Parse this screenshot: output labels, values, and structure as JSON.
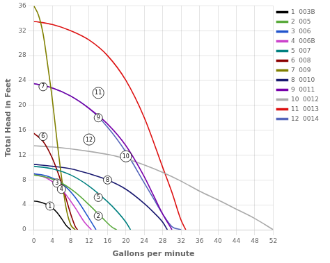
{
  "chart_data": {
    "type": "line",
    "xlabel": "Gallons per minute",
    "ylabel": "Total Head in Feet",
    "xlim": [
      0,
      52
    ],
    "ylim": [
      0,
      36
    ],
    "xticks": [
      0,
      4,
      8,
      12,
      16,
      20,
      24,
      28,
      32,
      36,
      40,
      44,
      48,
      52
    ],
    "yticks": [
      0,
      4,
      8,
      12,
      16,
      20,
      24,
      28,
      32,
      36
    ],
    "grid": true,
    "legend": "upper right",
    "series": [
      {
        "name": "1  003B",
        "color": "#000000",
        "x": [
          0,
          1,
          2,
          3,
          4,
          5,
          6,
          7,
          8
        ],
        "values": [
          4.6,
          4.5,
          4.3,
          4.0,
          3.5,
          2.8,
          1.8,
          0.7,
          0
        ]
      },
      {
        "name": "2  005",
        "color": "#5aaa3c",
        "x": [
          0,
          3,
          6,
          9,
          12,
          15,
          17,
          18
        ],
        "values": [
          8.8,
          8.4,
          7.5,
          6.0,
          4.0,
          1.8,
          0.4,
          0
        ]
      },
      {
        "name": "3  006",
        "color": "#2255cc",
        "x": [
          0,
          3,
          6,
          9,
          12,
          13.5
        ],
        "values": [
          9.0,
          8.6,
          7.5,
          5.2,
          1.8,
          0
        ]
      },
      {
        "name": "4  006B",
        "color": "#cc44cc",
        "x": [
          0,
          3,
          6,
          9,
          11,
          12.5
        ],
        "values": [
          9.0,
          8.2,
          6.5,
          3.5,
          1.2,
          0
        ]
      },
      {
        "name": "5  007",
        "color": "#008080",
        "x": [
          0,
          4,
          8,
          12,
          16,
          18,
          20,
          21
        ],
        "values": [
          10.2,
          9.8,
          8.8,
          7.0,
          4.5,
          3.0,
          1.2,
          0
        ]
      },
      {
        "name": "6  008",
        "color": "#8b0000",
        "x": [
          0,
          2,
          4,
          6,
          7,
          8,
          9,
          9.5
        ],
        "values": [
          15.5,
          14.2,
          11.5,
          7.5,
          5.0,
          2.5,
          0.5,
          0
        ]
      },
      {
        "name": "7  009",
        "color": "#808000",
        "x": [
          0,
          1,
          2,
          3,
          4,
          5,
          6,
          7,
          8,
          9
        ],
        "values": [
          36.0,
          34.5,
          31.5,
          26.5,
          21.0,
          14.5,
          8.5,
          3.5,
          0.8,
          0
        ]
      },
      {
        "name": "8  0010",
        "color": "#191970",
        "x": [
          0,
          4,
          8,
          12,
          16,
          20,
          24,
          26,
          28,
          29
        ],
        "values": [
          10.5,
          10.2,
          9.8,
          9.0,
          8.0,
          6.5,
          4.2,
          2.8,
          1.2,
          0
        ]
      },
      {
        "name": "9  0011",
        "color": "#7700aa",
        "x": [
          0,
          4,
          8,
          12,
          16,
          20,
          24,
          26,
          28,
          30
        ],
        "values": [
          23.5,
          22.8,
          21.5,
          19.5,
          17.0,
          13.5,
          8.5,
          5.5,
          2.5,
          0
        ]
      },
      {
        "name": "10  0012",
        "color": "#aaaaaa",
        "x": [
          0,
          4,
          8,
          12,
          16,
          20,
          24,
          28,
          32,
          36,
          40,
          44,
          48,
          52
        ],
        "values": [
          13.5,
          13.3,
          13.0,
          12.6,
          12.1,
          11.4,
          10.4,
          9.2,
          7.8,
          6.2,
          4.8,
          3.3,
          1.8,
          0
        ]
      },
      {
        "name": "11  0013",
        "color": "#dd1111",
        "x": [
          0,
          4,
          8,
          12,
          16,
          20,
          24,
          28,
          30,
          32,
          33
        ],
        "values": [
          33.5,
          33.0,
          32.0,
          30.5,
          28.0,
          24.0,
          18.0,
          10.0,
          6.0,
          1.5,
          0
        ]
      },
      {
        "name": "12  0014",
        "color": "#5566bb",
        "x": [
          0,
          4,
          8,
          12,
          16,
          20,
          24,
          26,
          28,
          30,
          32
        ],
        "values": [
          23.5,
          22.8,
          21.5,
          19.5,
          16.5,
          12.5,
          7.5,
          5.0,
          2.5,
          0.5,
          0
        ]
      }
    ],
    "annotations": [
      {
        "text": "1",
        "x": 3.5,
        "y": 3.8
      },
      {
        "text": "2",
        "x": 14,
        "y": 2.2
      },
      {
        "text": "3",
        "x": 5,
        "y": 7.5
      },
      {
        "text": "4",
        "x": 6,
        "y": 6.5
      },
      {
        "text": "5",
        "x": 14,
        "y": 5.2
      },
      {
        "text": "6",
        "x": 2,
        "y": 15.0
      },
      {
        "text": "7",
        "x": 2,
        "y": 23.0
      },
      {
        "text": "8",
        "x": 16,
        "y": 8.0
      },
      {
        "text": "9",
        "x": 14,
        "y": 18.0
      },
      {
        "text": "10",
        "x": 20,
        "y": 11.8
      },
      {
        "text": "11",
        "x": 14,
        "y": 22.0
      },
      {
        "text": "12",
        "x": 12,
        "y": 14.5
      }
    ]
  }
}
